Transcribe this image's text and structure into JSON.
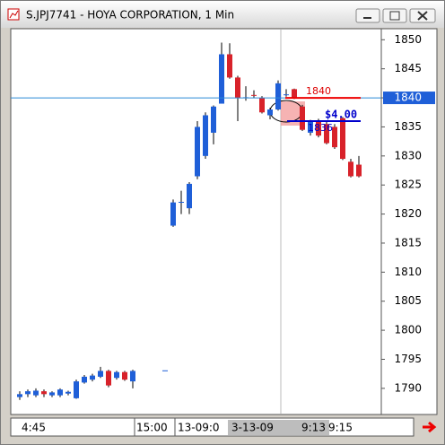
{
  "chart_data": {
    "type": "candlestick",
    "title": "S.JPJ7741 - HOYA CORPORATION, 1 Min",
    "up_color": "#1f5fd8",
    "down_color": "#d8222a",
    "ylim": [
      1785.5,
      1851.9
    ],
    "yticks": [
      1790,
      1795,
      1800,
      1805,
      1810,
      1815,
      1820,
      1825,
      1830,
      1835,
      1840,
      1845,
      1850
    ],
    "x_labels": [
      "4:45",
      "15:00",
      "13-09:0",
      "3-13-09",
      "9:13",
      "9:15"
    ],
    "open": [
      1788.5,
      1789,
      1788.8,
      1789.5,
      1788.8,
      1788.8,
      1789.1,
      1788.3,
      1791,
      1791.5,
      1792,
      1793,
      1791.8,
      1792.8,
      1791.2,
      null,
      null,
      null,
      1793.1,
      1818,
      1822,
      1821,
      1826.5,
      1830,
      1834,
      1839,
      1847.5,
      1843.5,
      1840,
      1840.5,
      1840,
      1837,
      1838,
      1840.5,
      1841.5,
      1838.5,
      1834,
      1836,
      1835.5,
      1835,
      1836.5,
      1829,
      1828.5
    ],
    "high": [
      1789.5,
      1789.8,
      1790,
      1789.8,
      1789.5,
      1790,
      1789.6,
      1791.5,
      1792.3,
      1792.5,
      1793.7,
      1793.2,
      1793,
      1793,
      1793.2,
      null,
      null,
      null,
      1793.1,
      1822.5,
      1824,
      1825.5,
      1836,
      1837.5,
      1838.7,
      1849.5,
      1849.4,
      1843.8,
      1842,
      1841.3,
      1840.3,
      1838.3,
      1843,
      1841.5,
      1841.6,
      1838.8,
      1836.2,
      1836.4,
      1836,
      1835.5,
      1836.7,
      1829.5,
      1830
    ],
    "low": [
      1788,
      1788.5,
      1788.5,
      1788.5,
      1788.5,
      1788.5,
      1788.8,
      1788.2,
      1790.8,
      1791.2,
      1791.8,
      1790.2,
      1791.5,
      1791.3,
      1790,
      null,
      null,
      null,
      1793.1,
      1817.8,
      1820,
      1820,
      1826,
      1829.5,
      1832,
      1839,
      1843.3,
      1836,
      1839.5,
      1840,
      1837.3,
      1836.3,
      1837.8,
      1840.2,
      1839.8,
      1834.3,
      1833.5,
      1833.2,
      1832,
      1831.2,
      1829.3,
      1826.3,
      1826.3
    ],
    "close": [
      1789,
      1789.5,
      1789.6,
      1789,
      1789.3,
      1789.8,
      1789.4,
      1791.2,
      1792,
      1792.2,
      1793,
      1790.5,
      1792.8,
      1791.5,
      1793,
      null,
      null,
      null,
      1793.1,
      1822,
      1822.1,
      1825.2,
      1835,
      1837,
      1838.5,
      1847.5,
      1843.5,
      1840,
      1840.1,
      1840.4,
      1837.5,
      1838,
      1842.5,
      1840.6,
      1840,
      1834.5,
      1836,
      1833.5,
      1832.2,
      1831.5,
      1829.5,
      1826.5,
      1826.5
    ],
    "last_price": 1840,
    "order_price": 1840,
    "stop_price": 1836,
    "profit_label": "$4.00"
  }
}
